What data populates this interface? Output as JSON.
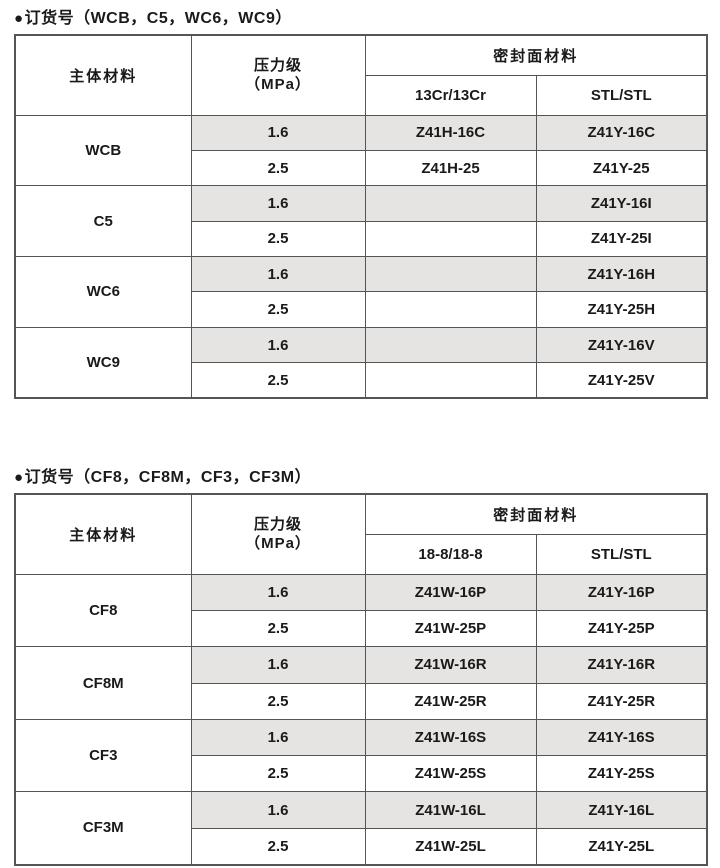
{
  "colors": {
    "row_shade": "#e5e4e2",
    "border": "#555555",
    "text": "#1a1a1a",
    "background": "#ffffff"
  },
  "tables": [
    {
      "bullet": "●",
      "title": "订货号（WCB，C5，WC6，WC9）",
      "headers": {
        "material": "主体材料",
        "pressure_line1": "压力级",
        "pressure_line2": "（MPa）",
        "seal_group": "密封面材料",
        "seal_cols": [
          "13Cr/13Cr",
          "STL/STL"
        ]
      },
      "groups": [
        {
          "material": "WCB",
          "rows": [
            {
              "pressure": "1.6",
              "seal1": "Z41H-16C",
              "seal2": "Z41Y-16C"
            },
            {
              "pressure": "2.5",
              "seal1": "Z41H-25",
              "seal2": "Z41Y-25"
            }
          ]
        },
        {
          "material": "C5",
          "rows": [
            {
              "pressure": "1.6",
              "seal1": "",
              "seal2": "Z41Y-16I"
            },
            {
              "pressure": "2.5",
              "seal1": "",
              "seal2": "Z41Y-25I"
            }
          ]
        },
        {
          "material": "WC6",
          "rows": [
            {
              "pressure": "1.6",
              "seal1": "",
              "seal2": "Z41Y-16H"
            },
            {
              "pressure": "2.5",
              "seal1": "",
              "seal2": "Z41Y-25H"
            }
          ]
        },
        {
          "material": "WC9",
          "rows": [
            {
              "pressure": "1.6",
              "seal1": "",
              "seal2": "Z41Y-16V"
            },
            {
              "pressure": "2.5",
              "seal1": "",
              "seal2": "Z41Y-25V"
            }
          ]
        }
      ]
    },
    {
      "bullet": "●",
      "title": "订货号（CF8，CF8M，CF3，CF3M）",
      "headers": {
        "material": "主体材料",
        "pressure_line1": "压力级",
        "pressure_line2": "（MPa）",
        "seal_group": "密封面材料",
        "seal_cols": [
          "18-8/18-8",
          "STL/STL"
        ]
      },
      "groups": [
        {
          "material": "CF8",
          "rows": [
            {
              "pressure": "1.6",
              "seal1": "Z41W-16P",
              "seal2": "Z41Y-16P"
            },
            {
              "pressure": "2.5",
              "seal1": "Z41W-25P",
              "seal2": "Z41Y-25P"
            }
          ]
        },
        {
          "material": "CF8M",
          "rows": [
            {
              "pressure": "1.6",
              "seal1": "Z41W-16R",
              "seal2": "Z41Y-16R"
            },
            {
              "pressure": "2.5",
              "seal1": "Z41W-25R",
              "seal2": "Z41Y-25R"
            }
          ]
        },
        {
          "material": "CF3",
          "rows": [
            {
              "pressure": "1.6",
              "seal1": "Z41W-16S",
              "seal2": "Z41Y-16S"
            },
            {
              "pressure": "2.5",
              "seal1": "Z41W-25S",
              "seal2": "Z41Y-25S"
            }
          ]
        },
        {
          "material": "CF3M",
          "rows": [
            {
              "pressure": "1.6",
              "seal1": "Z41W-16L",
              "seal2": "Z41Y-16L"
            },
            {
              "pressure": "2.5",
              "seal1": "Z41W-25L",
              "seal2": "Z41Y-25L"
            }
          ]
        }
      ]
    }
  ]
}
